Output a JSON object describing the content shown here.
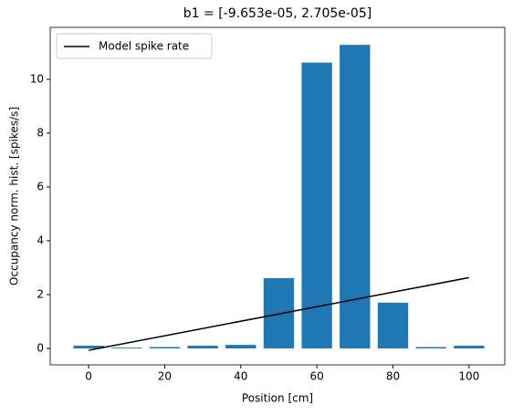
{
  "chart_data": {
    "type": "bar",
    "title": "b1 = [-9.653e-05, 2.705e-05]",
    "xlabel": "Position [cm]",
    "ylabel": "Occupancy norm. hist. [spikes/s]",
    "x": [
      0,
      10,
      20,
      30,
      40,
      50,
      60,
      70,
      80,
      90,
      100
    ],
    "values": [
      0.1,
      0.03,
      0.05,
      0.1,
      0.13,
      2.61,
      10.62,
      11.28,
      1.7,
      0.05,
      0.1
    ],
    "color": "#1f77b4",
    "lines": [
      {
        "type": "line",
        "name": "Model spike rate",
        "color": "#000000",
        "x": [
          0,
          100
        ],
        "values": [
          -0.07,
          2.63
        ]
      }
    ],
    "xlim": [
      -10.1,
      109.4
    ],
    "ylim": [
      -0.61,
      11.93
    ],
    "xticks": [
      0,
      20,
      40,
      60,
      80,
      100
    ],
    "yticks": [
      0,
      2,
      4,
      6,
      8,
      10
    ],
    "legend": "upper left"
  }
}
